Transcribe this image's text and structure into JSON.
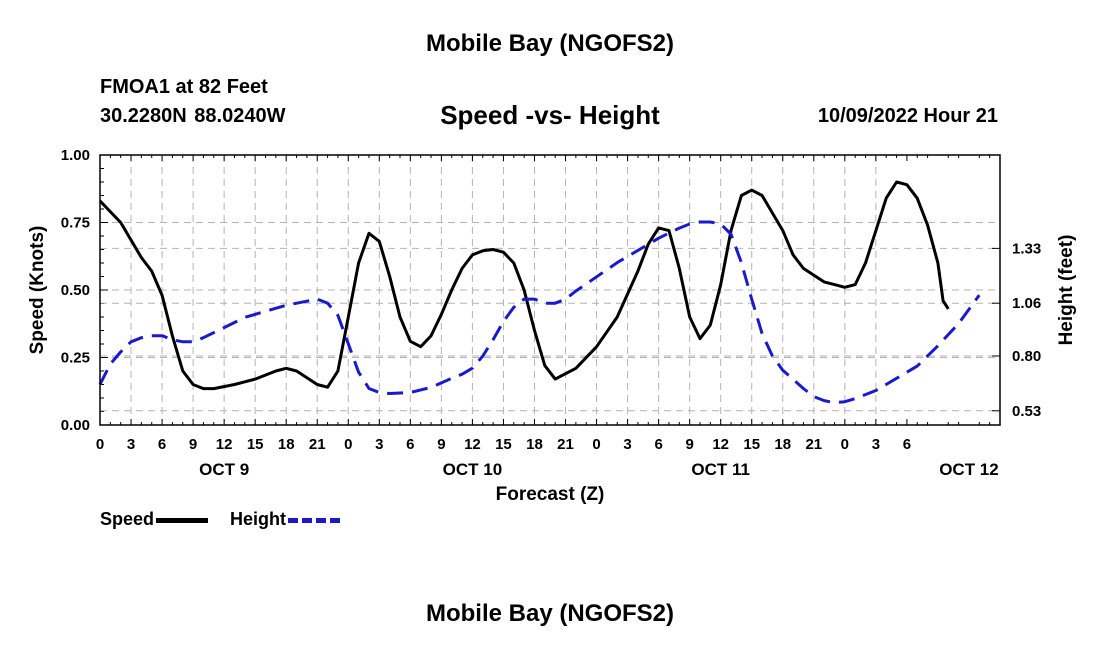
{
  "header": {
    "title": "Mobile Bay (NGOFS2)",
    "station": "FMOA1 at 82 Feet",
    "coords": "30.2280N  88.0240W",
    "subtitle": "Speed -vs- Height",
    "datetime": "10/09/2022 Hour 21"
  },
  "footer": {
    "title": "Mobile Bay (NGOFS2)"
  },
  "legend": {
    "speed_label": "Speed",
    "height_label": "Height"
  },
  "colors": {
    "speed": "#000000",
    "height": "#1a1acc",
    "grid": "#b4b4b4"
  },
  "chart_data": {
    "type": "line",
    "xlabel": "Forecast (Z)",
    "ylabel_left": "Speed (Knots)",
    "ylabel_right": "Height (feet)",
    "x_range_hours": [
      0,
      87
    ],
    "x_tick_labels": [
      "0",
      "3",
      "6",
      "9",
      "12",
      "15",
      "18",
      "21",
      "0",
      "3",
      "6",
      "9",
      "12",
      "15",
      "18",
      "21",
      "0",
      "3",
      "6",
      "9",
      "12",
      "15",
      "18",
      "21",
      "0",
      "3",
      "6"
    ],
    "date_labels": [
      {
        "label": "OCT 9",
        "hour": 12
      },
      {
        "label": "OCT 10",
        "hour": 36
      },
      {
        "label": "OCT 11",
        "hour": 60
      },
      {
        "label": "OCT 12",
        "hour": 84
      }
    ],
    "y_left": {
      "range": [
        0,
        1
      ],
      "ticks": [
        0.0,
        0.25,
        0.5,
        0.75,
        1.0
      ],
      "tick_labels": [
        "0.00",
        "0.25",
        "0.50",
        "0.75",
        "1.00"
      ]
    },
    "y_right": {
      "range": [
        0.46,
        1.79
      ],
      "ticks": [
        0.53,
        0.8,
        1.06,
        1.33
      ],
      "tick_labels": [
        "0.53",
        "0.80",
        "1.06",
        "1.33"
      ]
    },
    "series": [
      {
        "name": "Speed",
        "axis": "left",
        "points": [
          [
            0,
            0.83
          ],
          [
            2,
            0.75
          ],
          [
            4,
            0.62
          ],
          [
            5,
            0.57
          ],
          [
            6,
            0.48
          ],
          [
            7,
            0.33
          ],
          [
            8,
            0.2
          ],
          [
            9,
            0.15
          ],
          [
            10,
            0.135
          ],
          [
            11,
            0.135
          ],
          [
            13,
            0.15
          ],
          [
            15,
            0.17
          ],
          [
            17,
            0.2
          ],
          [
            18,
            0.21
          ],
          [
            19,
            0.2
          ],
          [
            21,
            0.15
          ],
          [
            22,
            0.14
          ],
          [
            23,
            0.2
          ],
          [
            24,
            0.4
          ],
          [
            25,
            0.6
          ],
          [
            26,
            0.71
          ],
          [
            27,
            0.68
          ],
          [
            28,
            0.55
          ],
          [
            29,
            0.4
          ],
          [
            30,
            0.31
          ],
          [
            31,
            0.29
          ],
          [
            32,
            0.33
          ],
          [
            33,
            0.41
          ],
          [
            34,
            0.5
          ],
          [
            35,
            0.58
          ],
          [
            36,
            0.63
          ],
          [
            37,
            0.645
          ],
          [
            38,
            0.65
          ],
          [
            39,
            0.64
          ],
          [
            40,
            0.6
          ],
          [
            41,
            0.5
          ],
          [
            42,
            0.35
          ],
          [
            43,
            0.22
          ],
          [
            44,
            0.17
          ],
          [
            45,
            0.19
          ],
          [
            46,
            0.21
          ],
          [
            48,
            0.29
          ],
          [
            50,
            0.4
          ],
          [
            52,
            0.57
          ],
          [
            53,
            0.67
          ],
          [
            54,
            0.73
          ],
          [
            55,
            0.72
          ],
          [
            56,
            0.58
          ],
          [
            57,
            0.4
          ],
          [
            58,
            0.32
          ],
          [
            59,
            0.37
          ],
          [
            60,
            0.52
          ],
          [
            61,
            0.72
          ],
          [
            62,
            0.85
          ],
          [
            63,
            0.87
          ],
          [
            64,
            0.85
          ],
          [
            66,
            0.72
          ],
          [
            67,
            0.63
          ],
          [
            68,
            0.58
          ],
          [
            70,
            0.53
          ],
          [
            71,
            0.52
          ],
          [
            72,
            0.51
          ],
          [
            73,
            0.52
          ],
          [
            74,
            0.6
          ],
          [
            75,
            0.72
          ],
          [
            76,
            0.84
          ],
          [
            77,
            0.9
          ],
          [
            78,
            0.89
          ],
          [
            79,
            0.84
          ],
          [
            80,
            0.74
          ],
          [
            81,
            0.6
          ],
          [
            81.5,
            0.46
          ],
          [
            82,
            0.43
          ]
        ]
      },
      {
        "name": "Height",
        "axis": "right",
        "points": [
          [
            0,
            0.66
          ],
          [
            1,
            0.76
          ],
          [
            2,
            0.82
          ],
          [
            3,
            0.87
          ],
          [
            4,
            0.89
          ],
          [
            5,
            0.9
          ],
          [
            6,
            0.9
          ],
          [
            7,
            0.88
          ],
          [
            8,
            0.87
          ],
          [
            9,
            0.87
          ],
          [
            10,
            0.89
          ],
          [
            12,
            0.94
          ],
          [
            14,
            0.99
          ],
          [
            16,
            1.02
          ],
          [
            18,
            1.05
          ],
          [
            20,
            1.07
          ],
          [
            21,
            1.08
          ],
          [
            22,
            1.06
          ],
          [
            23,
            1.0
          ],
          [
            24,
            0.86
          ],
          [
            25,
            0.72
          ],
          [
            26,
            0.64
          ],
          [
            27,
            0.62
          ],
          [
            28,
            0.615
          ],
          [
            30,
            0.62
          ],
          [
            32,
            0.645
          ],
          [
            34,
            0.69
          ],
          [
            35,
            0.71
          ],
          [
            36,
            0.74
          ],
          [
            37,
            0.8
          ],
          [
            38,
            0.88
          ],
          [
            39,
            0.97
          ],
          [
            40,
            1.04
          ],
          [
            41,
            1.08
          ],
          [
            42,
            1.08
          ],
          [
            43,
            1.06
          ],
          [
            44,
            1.06
          ],
          [
            45,
            1.08
          ],
          [
            46,
            1.12
          ],
          [
            48,
            1.19
          ],
          [
            50,
            1.26
          ],
          [
            52,
            1.32
          ],
          [
            54,
            1.38
          ],
          [
            56,
            1.43
          ],
          [
            57,
            1.45
          ],
          [
            58,
            1.46
          ],
          [
            59,
            1.46
          ],
          [
            60,
            1.45
          ],
          [
            61,
            1.4
          ],
          [
            62,
            1.26
          ],
          [
            63,
            1.08
          ],
          [
            64,
            0.91
          ],
          [
            65,
            0.8
          ],
          [
            66,
            0.73
          ],
          [
            68,
            0.64
          ],
          [
            69,
            0.6
          ],
          [
            70,
            0.58
          ],
          [
            71,
            0.57
          ],
          [
            72,
            0.575
          ],
          [
            73,
            0.59
          ],
          [
            75,
            0.63
          ],
          [
            77,
            0.69
          ],
          [
            79,
            0.75
          ],
          [
            81,
            0.85
          ],
          [
            83,
            0.96
          ],
          [
            84,
            1.03
          ],
          [
            85,
            1.1
          ]
        ]
      }
    ]
  }
}
